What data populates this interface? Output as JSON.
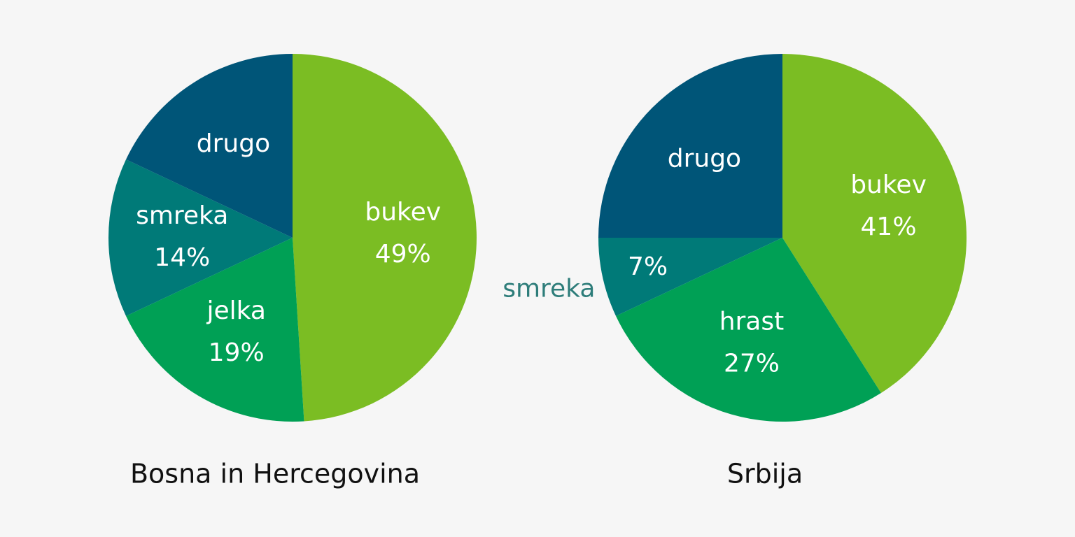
{
  "chart_data": [
    {
      "type": "pie",
      "title": "Bosna in Hercegovina",
      "categories": [
        "bukev",
        "jelka",
        "smreka",
        "drugo"
      ],
      "values": [
        49,
        19,
        14,
        18
      ],
      "value_labels": [
        "49%",
        "19%",
        "14%",
        null
      ],
      "colors": [
        "#7bbd23",
        "#00a055",
        "#007a78",
        "#005578"
      ]
    },
    {
      "type": "pie",
      "title": "Srbija",
      "categories": [
        "bukev",
        "hrast",
        "smreka",
        "drugo"
      ],
      "values": [
        41,
        27,
        7,
        25
      ],
      "value_labels": [
        "41%",
        "27%",
        "7%",
        null
      ],
      "colors": [
        "#7bbd23",
        "#00a055",
        "#007a78",
        "#005578"
      ]
    }
  ]
}
